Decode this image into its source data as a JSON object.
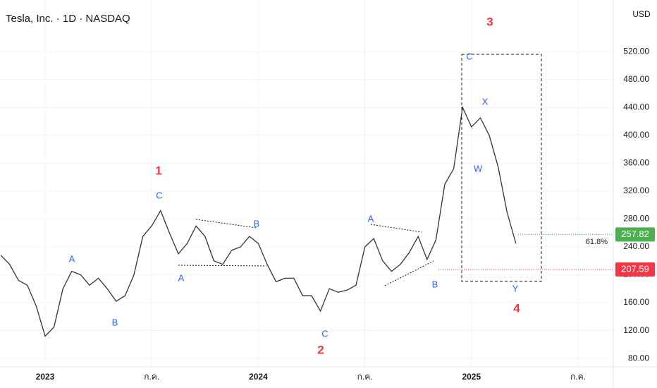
{
  "chart_data": {
    "type": "line",
    "title": "Tesla, Inc. · 1D · NASDAQ",
    "currency": "USD",
    "color": "#333333",
    "categories": [
      null,
      null,
      null,
      null,
      null,
      "2023",
      null,
      null,
      null,
      null,
      null,
      null,
      null,
      null,
      null,
      null,
      null,
      "ก.ค.",
      null,
      null,
      null,
      null,
      null,
      null,
      null,
      null,
      null,
      null,
      null,
      "2024",
      null,
      null,
      null,
      null,
      null,
      null,
      null,
      null,
      null,
      null,
      null,
      "ก.ค.",
      null,
      null,
      null,
      null,
      null,
      null,
      null,
      null,
      null,
      null,
      null,
      "2025",
      null,
      null,
      null,
      null,
      null,
      null,
      null,
      null,
      null,
      null,
      null,
      "ก.ค.",
      null,
      null,
      null
    ],
    "values": [
      228,
      215,
      192,
      185,
      155,
      112,
      125,
      180,
      205,
      200,
      185,
      195,
      180,
      162,
      170,
      200,
      255,
      270,
      292,
      260,
      230,
      245,
      270,
      255,
      220,
      215,
      235,
      240,
      255,
      245,
      215,
      190,
      195,
      195,
      170,
      170,
      148,
      180,
      175,
      178,
      185,
      240,
      252,
      220,
      205,
      215,
      232,
      255,
      222,
      250,
      330,
      352,
      440,
      412,
      425,
      400,
      355,
      290,
      245,
      null,
      null,
      null,
      null,
      null,
      null,
      null,
      null,
      null,
      null
    ],
    "ylim": [
      68,
      594
    ],
    "yticks": [
      {
        "value": 80,
        "label": "80.00"
      },
      {
        "value": 120,
        "label": "120.00"
      },
      {
        "value": 160,
        "label": "160.00"
      },
      {
        "value": 200,
        "label": "200.00"
      },
      {
        "value": 240,
        "label": "240.00"
      },
      {
        "value": 280,
        "label": "280.00"
      },
      {
        "value": 320,
        "label": "320.00"
      },
      {
        "value": 360,
        "label": "360.00"
      },
      {
        "value": 400,
        "label": "400.00"
      },
      {
        "value": 440,
        "label": "440.00"
      },
      {
        "value": 480,
        "label": "480.00"
      },
      {
        "value": 520,
        "label": "520.00"
      }
    ],
    "grid": true,
    "price_lines": [
      {
        "value": 257.82,
        "color": "#4caf50"
      },
      {
        "value": 207.59,
        "color": "#f23645"
      }
    ],
    "fib_label": "61.8%",
    "wave_labels": [
      {
        "text": "1",
        "color": "#f23645"
      },
      {
        "text": "A",
        "color": "#2962ff"
      },
      {
        "text": "B",
        "color": "#2962ff"
      },
      {
        "text": "C",
        "color": "#2962ff"
      },
      {
        "text": "A",
        "color": "#2962ff"
      },
      {
        "text": "B",
        "color": "#2962ff"
      },
      {
        "text": "2",
        "color": "#f23645"
      },
      {
        "text": "C",
        "color": "#2962ff"
      },
      {
        "text": "A",
        "color": "#2962ff"
      },
      {
        "text": "B",
        "color": "#2962ff"
      },
      {
        "text": "3",
        "color": "#f23645"
      },
      {
        "text": "C",
        "color": "#2962ff"
      },
      {
        "text": "X",
        "color": "#2962ff"
      },
      {
        "text": "W",
        "color": "#2962ff"
      },
      {
        "text": "Y",
        "color": "#2962ff"
      },
      {
        "text": "4",
        "color": "#f23645"
      }
    ]
  }
}
